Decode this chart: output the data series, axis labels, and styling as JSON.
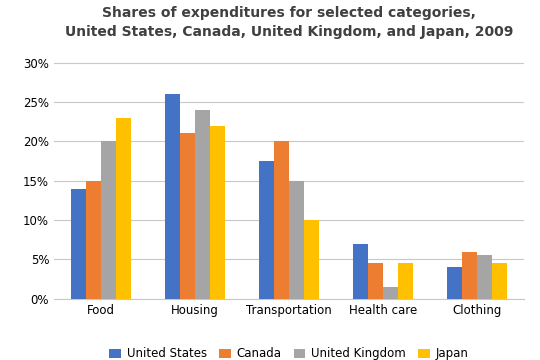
{
  "title": "Shares of expenditures for selected categories,\nUnited States, Canada, United Kingdom, and Japan, 2009",
  "categories": [
    "Food",
    "Housing",
    "Transportation",
    "Health care",
    "Clothing"
  ],
  "countries": [
    "United States",
    "Canada",
    "United Kingdom",
    "Japan"
  ],
  "values": {
    "United States": [
      14,
      26,
      17.5,
      7,
      4
    ],
    "Canada": [
      15,
      21,
      20,
      4.5,
      6
    ],
    "United Kingdom": [
      20,
      24,
      15,
      1.5,
      5.5
    ],
    "Japan": [
      23,
      22,
      10,
      4.5,
      4.5
    ]
  },
  "colors": {
    "United States": "#4472C4",
    "Canada": "#ED7D31",
    "United Kingdom": "#A5A5A5",
    "Japan": "#FFC000"
  },
  "ylim": [
    0,
    32
  ],
  "yticks": [
    0,
    5,
    10,
    15,
    20,
    25,
    30
  ],
  "bar_width": 0.16,
  "title_fontsize": 10,
  "tick_fontsize": 8.5,
  "legend_fontsize": 8.5,
  "background_color": "#ffffff",
  "grid_color": "#c8c8c8"
}
